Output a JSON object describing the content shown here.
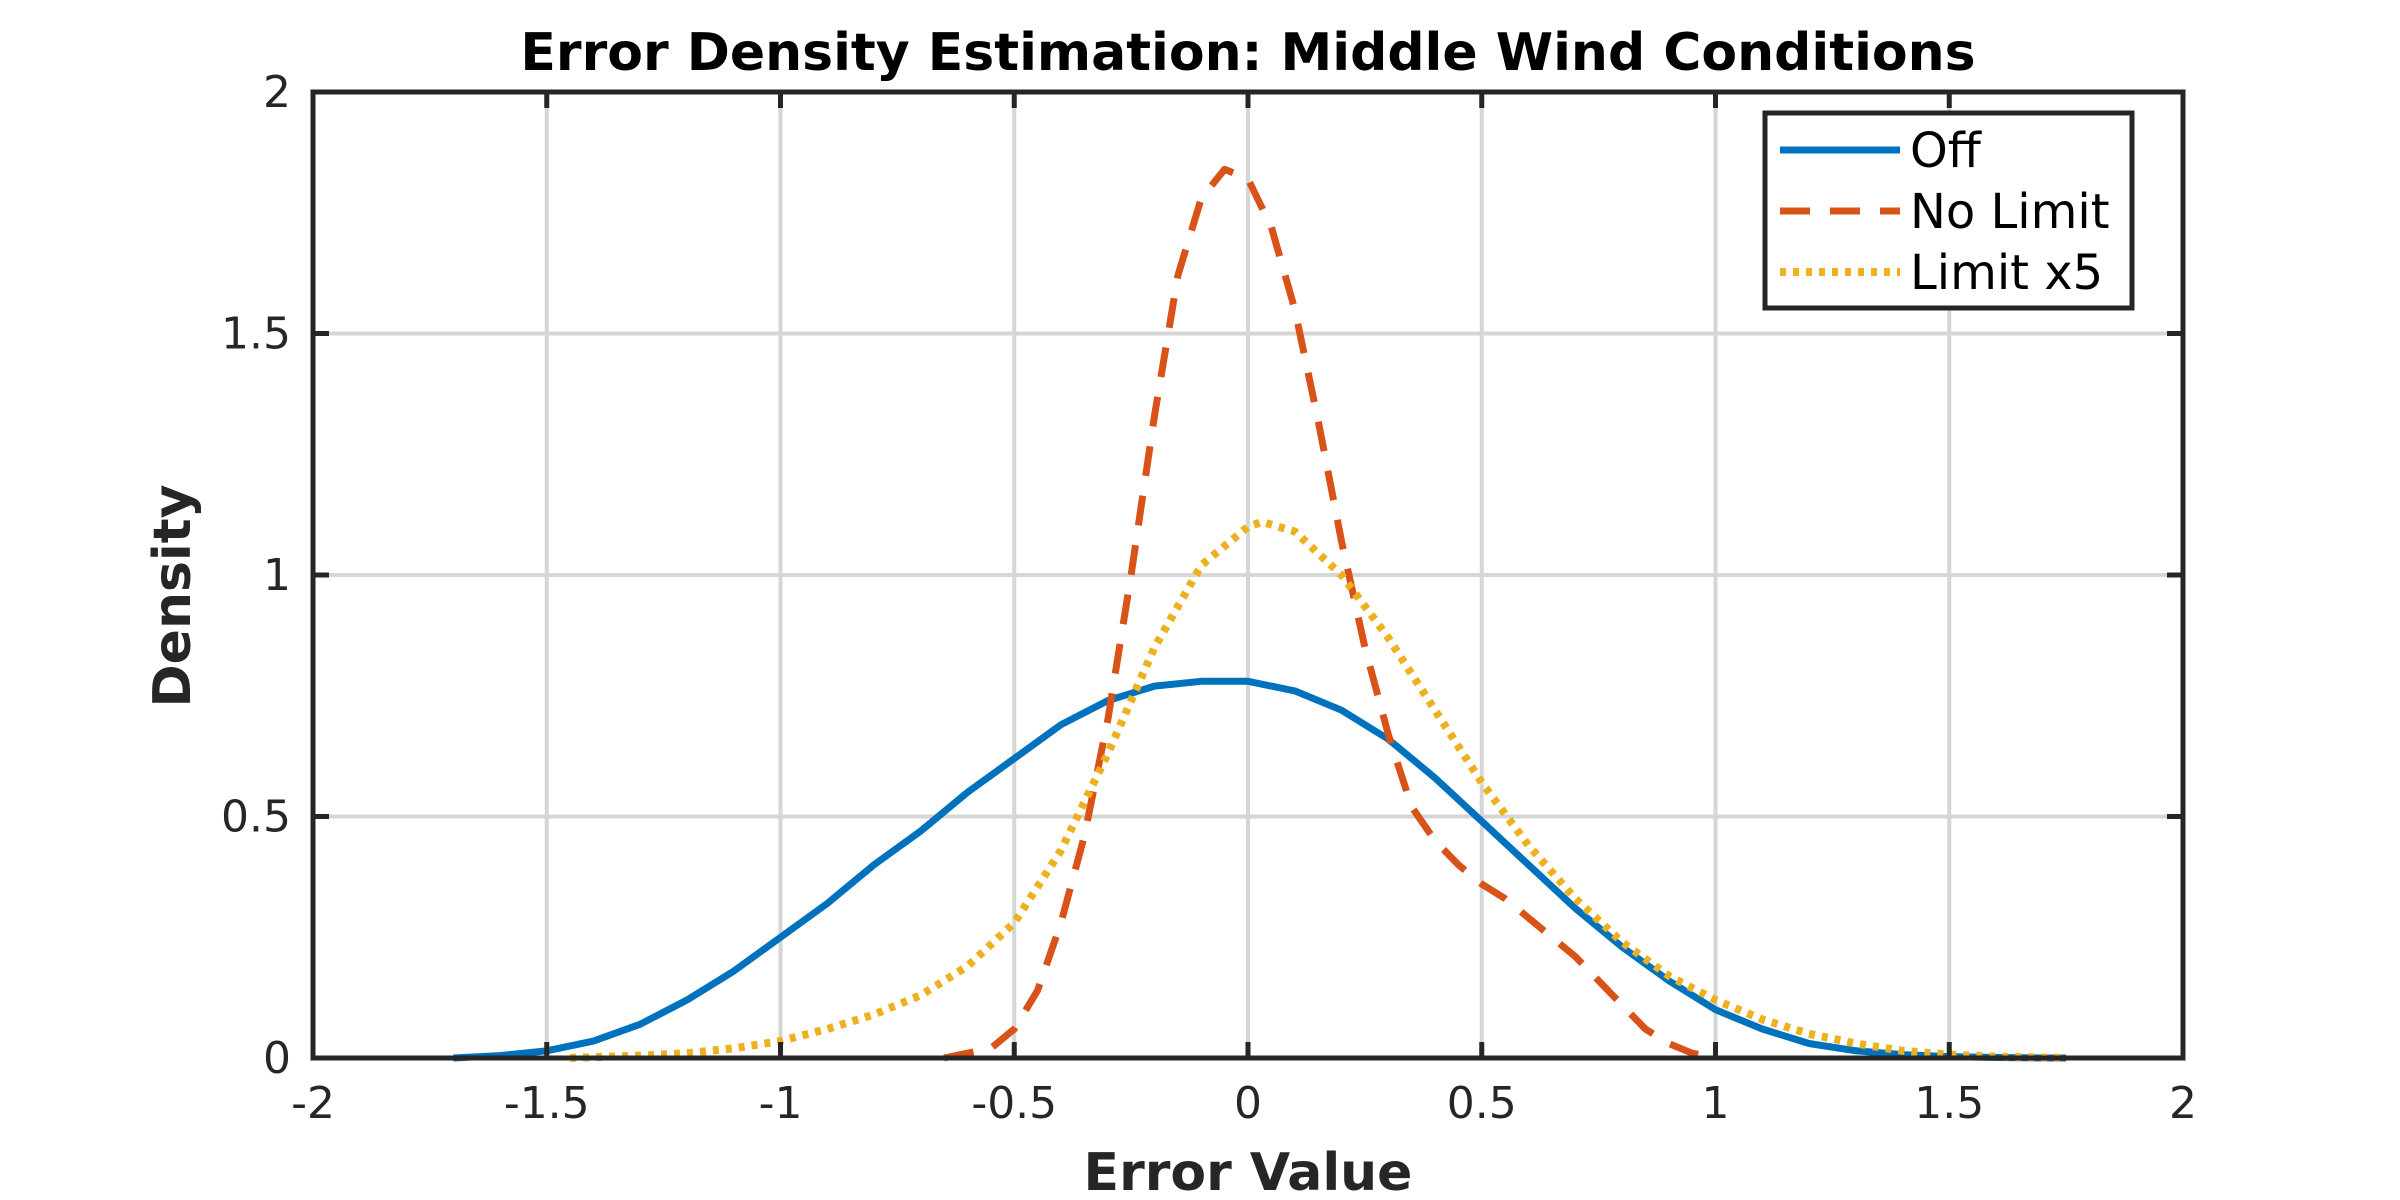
{
  "chart_data": {
    "type": "line",
    "title": "Error Density Estimation: Middle Wind Conditions",
    "xlabel": "Error Value",
    "ylabel": "Density",
    "xlim": [
      -2,
      2
    ],
    "ylim": [
      0,
      2
    ],
    "xticks": [
      -2,
      -1.5,
      -1,
      -0.5,
      0,
      0.5,
      1,
      1.5,
      2
    ],
    "xtick_labels": [
      "-2",
      "-1.5",
      "-1",
      "-0.5",
      "0",
      "0.5",
      "1",
      "1.5",
      "2"
    ],
    "yticks": [
      0,
      0.5,
      1,
      1.5,
      2
    ],
    "ytick_labels": [
      "0",
      "0.5",
      "1",
      "1.5",
      "2"
    ],
    "grid": true,
    "legend_position": "top-right",
    "series": [
      {
        "name": "Off",
        "color": "#0072BD",
        "style": "solid",
        "x": [
          -1.7,
          -1.6,
          -1.5,
          -1.4,
          -1.3,
          -1.2,
          -1.1,
          -1.0,
          -0.9,
          -0.8,
          -0.7,
          -0.6,
          -0.5,
          -0.4,
          -0.3,
          -0.2,
          -0.1,
          -0.05,
          0.0,
          0.1,
          0.2,
          0.3,
          0.4,
          0.5,
          0.6,
          0.7,
          0.8,
          0.9,
          1.0,
          1.1,
          1.2,
          1.3,
          1.4,
          1.5,
          1.6,
          1.7,
          1.75
        ],
        "y": [
          0.0,
          0.005,
          0.015,
          0.035,
          0.07,
          0.12,
          0.18,
          0.25,
          0.32,
          0.4,
          0.47,
          0.55,
          0.62,
          0.69,
          0.74,
          0.77,
          0.78,
          0.78,
          0.78,
          0.76,
          0.72,
          0.66,
          0.58,
          0.49,
          0.4,
          0.31,
          0.23,
          0.16,
          0.1,
          0.06,
          0.03,
          0.015,
          0.007,
          0.003,
          0.001,
          0.0,
          0.0
        ]
      },
      {
        "name": "No Limit",
        "color": "#D95319",
        "style": "dashed",
        "x": [
          -0.65,
          -0.55,
          -0.5,
          -0.45,
          -0.4,
          -0.35,
          -0.3,
          -0.25,
          -0.2,
          -0.15,
          -0.1,
          -0.05,
          0.0,
          0.05,
          0.1,
          0.15,
          0.2,
          0.25,
          0.3,
          0.35,
          0.4,
          0.45,
          0.5,
          0.55,
          0.6,
          0.65,
          0.7,
          0.75,
          0.8,
          0.85,
          0.9,
          0.95,
          1.0
        ],
        "y": [
          0.0,
          0.02,
          0.06,
          0.14,
          0.28,
          0.46,
          0.7,
          1.0,
          1.33,
          1.62,
          1.78,
          1.84,
          1.82,
          1.72,
          1.55,
          1.32,
          1.07,
          0.85,
          0.67,
          0.52,
          0.45,
          0.4,
          0.36,
          0.33,
          0.29,
          0.25,
          0.21,
          0.16,
          0.11,
          0.06,
          0.03,
          0.01,
          0.0
        ]
      },
      {
        "name": "Limit x5",
        "color": "#EDB120",
        "style": "dotted",
        "x": [
          -1.45,
          -1.3,
          -1.2,
          -1.1,
          -1.0,
          -0.9,
          -0.8,
          -0.7,
          -0.6,
          -0.5,
          -0.4,
          -0.3,
          -0.2,
          -0.1,
          0.0,
          0.03,
          0.1,
          0.2,
          0.3,
          0.4,
          0.5,
          0.6,
          0.7,
          0.8,
          0.9,
          1.0,
          1.1,
          1.2,
          1.3,
          1.4,
          1.5,
          1.6,
          1.7,
          1.75
        ],
        "y": [
          0.0,
          0.005,
          0.01,
          0.02,
          0.035,
          0.06,
          0.09,
          0.13,
          0.19,
          0.28,
          0.43,
          0.63,
          0.85,
          1.02,
          1.1,
          1.11,
          1.09,
          1.0,
          0.87,
          0.72,
          0.57,
          0.44,
          0.33,
          0.24,
          0.17,
          0.12,
          0.08,
          0.05,
          0.03,
          0.015,
          0.007,
          0.003,
          0.001,
          0.0
        ]
      }
    ]
  }
}
